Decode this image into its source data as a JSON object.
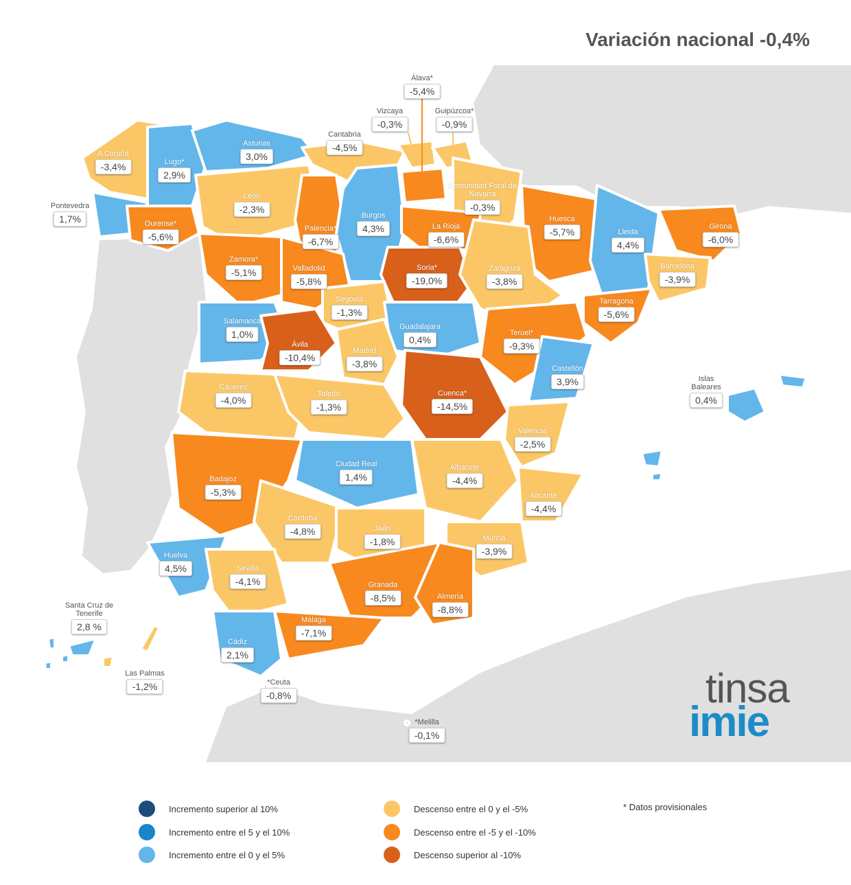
{
  "title": "Variación nacional -0,4%",
  "colors": {
    "inc_gt10": "#1e4b7a",
    "inc_5_10": "#1a84c9",
    "inc_0_5": "#63b6ea",
    "dec_0_5": "#fbc766",
    "dec_5_10": "#f7891f",
    "dec_gt10": "#d8601a",
    "land": "#e0e0e0",
    "border": "#ffffff"
  },
  "provinces": [
    {
      "name": "A Coruña",
      "value": "-3,4%"
    },
    {
      "name": "Lugo*",
      "value": "2,9%"
    },
    {
      "name": "Asturias",
      "value": "3,0%"
    },
    {
      "name": "Cantabria",
      "value": "-4,5%"
    },
    {
      "name": "Vizcaya",
      "value": "-0,3%"
    },
    {
      "name": "Álava*",
      "value": "-5,4%"
    },
    {
      "name": "Guipúzcoa*",
      "value": "-0,9%"
    },
    {
      "name": "Comunidad Foral de Navarra",
      "value": "-0,3%"
    },
    {
      "name": "Pontevedra",
      "value": "1,7%"
    },
    {
      "name": "Ourense*",
      "value": "-5,6%"
    },
    {
      "name": "León",
      "value": "-2,3%"
    },
    {
      "name": "Palencia*",
      "value": "-6,7%"
    },
    {
      "name": "Burgos",
      "value": "4,3%"
    },
    {
      "name": "La Rioja",
      "value": "-6,6%"
    },
    {
      "name": "Huesca",
      "value": "-5,7%"
    },
    {
      "name": "Lleida",
      "value": "4,4%"
    },
    {
      "name": "Girona",
      "value": "-6,0%"
    },
    {
      "name": "Zamora*",
      "value": "-5,1%"
    },
    {
      "name": "Valladolid",
      "value": "-5,8%"
    },
    {
      "name": "Soria*",
      "value": "-19,0%"
    },
    {
      "name": "Zaragoza",
      "value": "-3,8%"
    },
    {
      "name": "Barcelona",
      "value": "-3,9%"
    },
    {
      "name": "Segovia",
      "value": "-1,3%"
    },
    {
      "name": "Tarragona",
      "value": "-5,6%"
    },
    {
      "name": "Salamanca",
      "value": "1,0%"
    },
    {
      "name": "Guadalajara",
      "value": "0,4%"
    },
    {
      "name": "Teruel*",
      "value": "-9,3%"
    },
    {
      "name": "Ávila",
      "value": "-10,4%"
    },
    {
      "name": "Madrid",
      "value": "-3,8%"
    },
    {
      "name": "Castellón",
      "value": "3,9%"
    },
    {
      "name": "Islas Baleares",
      "value": "0,4%"
    },
    {
      "name": "Cáceres",
      "value": "-4,0%"
    },
    {
      "name": "Toledo",
      "value": "-1,3%"
    },
    {
      "name": "Cuenca*",
      "value": "-14,5%"
    },
    {
      "name": "Valencia",
      "value": "-2,5%"
    },
    {
      "name": "Ciudad Real",
      "value": "1,4%"
    },
    {
      "name": "Albacete",
      "value": "-4,4%"
    },
    {
      "name": "Badajoz",
      "value": "-5,3%"
    },
    {
      "name": "Alicante",
      "value": "-4,4%"
    },
    {
      "name": "Córdoba",
      "value": "-4,8%"
    },
    {
      "name": "Jaén",
      "value": "-1,8%"
    },
    {
      "name": "Murcia",
      "value": "-3,9%"
    },
    {
      "name": "Huelva",
      "value": "4,5%"
    },
    {
      "name": "Sevilla",
      "value": "-4,1%"
    },
    {
      "name": "Granada",
      "value": "-8,5%"
    },
    {
      "name": "Almería",
      "value": "-8,8%"
    },
    {
      "name": "Santa Cruz de Tenerife",
      "value": "2,8 %"
    },
    {
      "name": "Málaga",
      "value": "-7,1%"
    },
    {
      "name": "Cádiz",
      "value": "2,1%"
    },
    {
      "name": "Las Palmas",
      "value": "-1,2%"
    },
    {
      "name": "*Ceuta",
      "value": "-0,8%"
    },
    {
      "name": "*Melilla",
      "value": "-0,1%"
    }
  ],
  "legend": [
    {
      "label": "Incremento superior al 10%",
      "color": "#1e4b7a"
    },
    {
      "label": "Incremento entre el 5 y el 10%",
      "color": "#1a84c9"
    },
    {
      "label": "Incremento entre el 0 y el 5%",
      "color": "#63b6ea"
    },
    {
      "label": "Descenso entre el 0 y el -5%",
      "color": "#fbc766"
    },
    {
      "label": "Descenso entre el -5 y el -10%",
      "color": "#f7891f"
    },
    {
      "label": "Descenso superior al -10%",
      "color": "#d8601a"
    }
  ],
  "note": "* Datos provisionales",
  "logo": {
    "line1": "tinsa",
    "line2": "imie"
  }
}
